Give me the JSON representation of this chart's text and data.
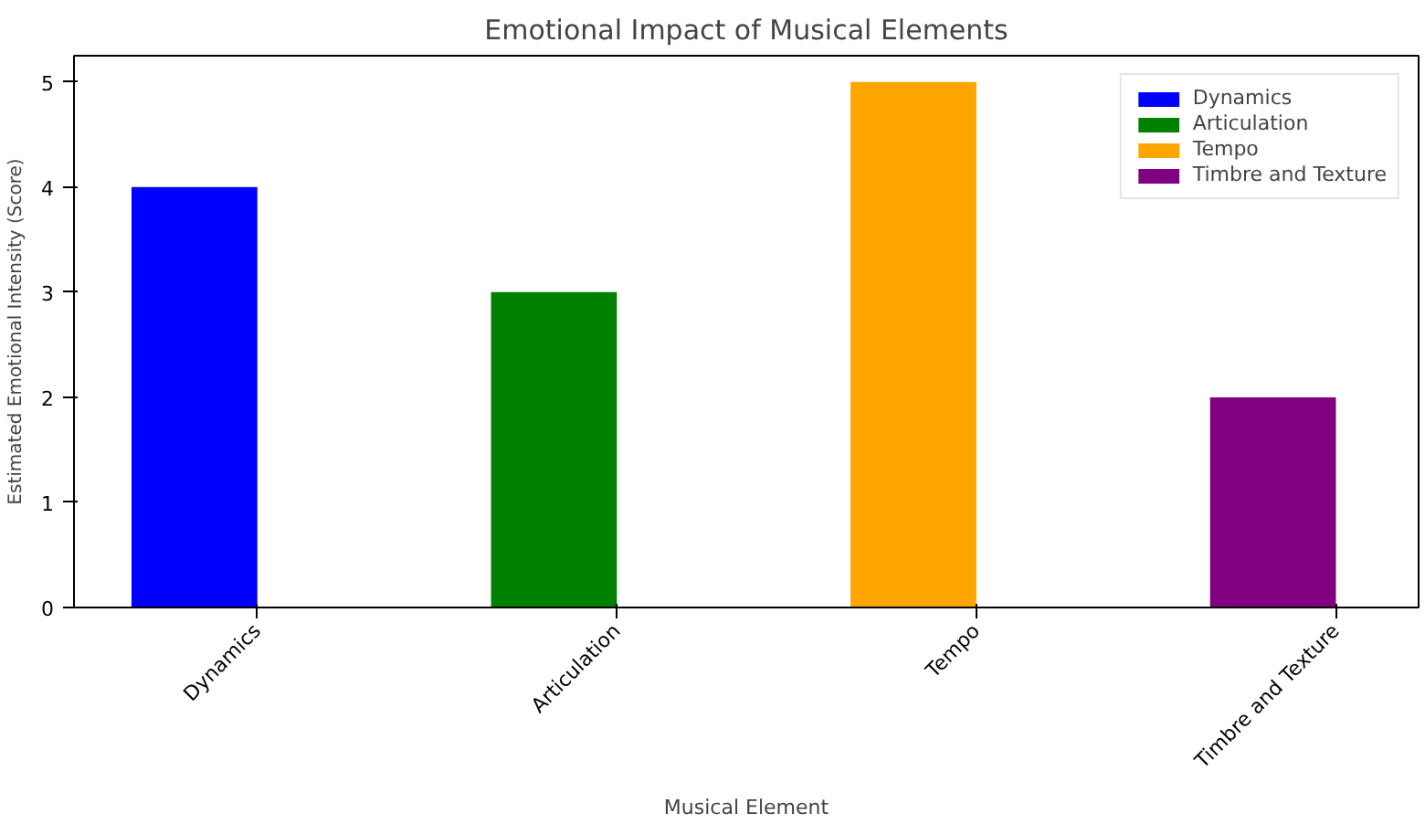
{
  "chart_data": {
    "type": "bar",
    "title": "Emotional Impact of Musical Elements",
    "xlabel": "Musical Element",
    "ylabel": "Estimated Emotional Intensity (Score)",
    "categories": [
      "Dynamics",
      "Articulation",
      "Tempo",
      "Timbre and Texture"
    ],
    "series": [
      {
        "name": "Dynamics",
        "color": "#0000ff",
        "values": [
          4,
          null,
          null,
          null
        ]
      },
      {
        "name": "Articulation",
        "color": "#008000",
        "values": [
          null,
          3,
          null,
          null
        ]
      },
      {
        "name": "Tempo",
        "color": "#ffa500",
        "values": [
          null,
          null,
          5,
          null
        ]
      },
      {
        "name": "Timbre and Texture",
        "color": "#800080",
        "values": [
          null,
          null,
          null,
          2
        ]
      }
    ],
    "ylim": [
      0,
      5.25
    ],
    "yticks": [
      0,
      1,
      2,
      3,
      4,
      5
    ],
    "legend": "top right"
  }
}
